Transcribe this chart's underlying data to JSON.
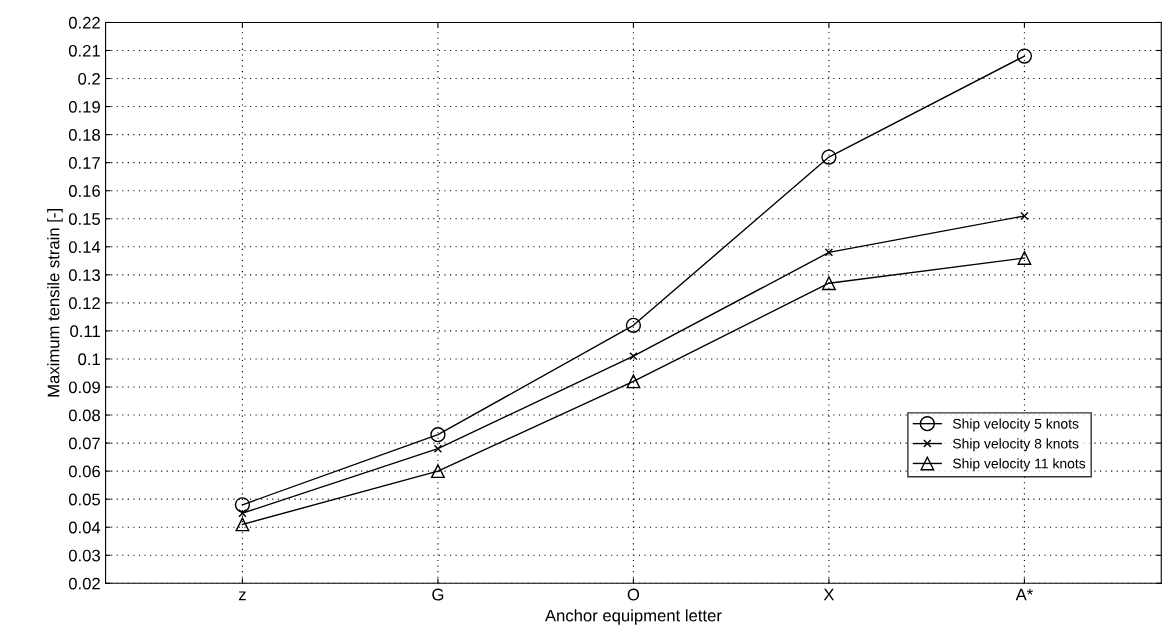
{
  "chart_data": {
    "type": "line",
    "xlabel": "Anchor equipment letter",
    "ylabel": "Maximum tensile strain [-]",
    "categories": [
      "z",
      "G",
      "O",
      "X",
      "A*"
    ],
    "ylim": [
      0.02,
      0.22
    ],
    "yticks": [
      0.02,
      0.03,
      0.04,
      0.05,
      0.06,
      0.07,
      0.08,
      0.09,
      0.1,
      0.11,
      0.12,
      0.13,
      0.14,
      0.15,
      0.16,
      0.17,
      0.18,
      0.19,
      0.2,
      0.21,
      0.22
    ],
    "grid": true,
    "legend": "bottom right",
    "line_style": "solid",
    "series": [
      {
        "name": "Ship velocity 5 knots",
        "color": "#000000",
        "marker": "circle",
        "values": [
          0.048,
          0.073,
          0.112,
          0.172,
          0.208
        ]
      },
      {
        "name": "Ship velocity 8 knots",
        "color": "#000000",
        "marker": "cross",
        "values": [
          0.045,
          0.068,
          0.101,
          0.138,
          0.151
        ]
      },
      {
        "name": "Ship velocity 11 knots",
        "color": "#000000",
        "marker": "triangle",
        "values": [
          0.041,
          0.06,
          0.092,
          0.127,
          0.136
        ]
      }
    ]
  }
}
